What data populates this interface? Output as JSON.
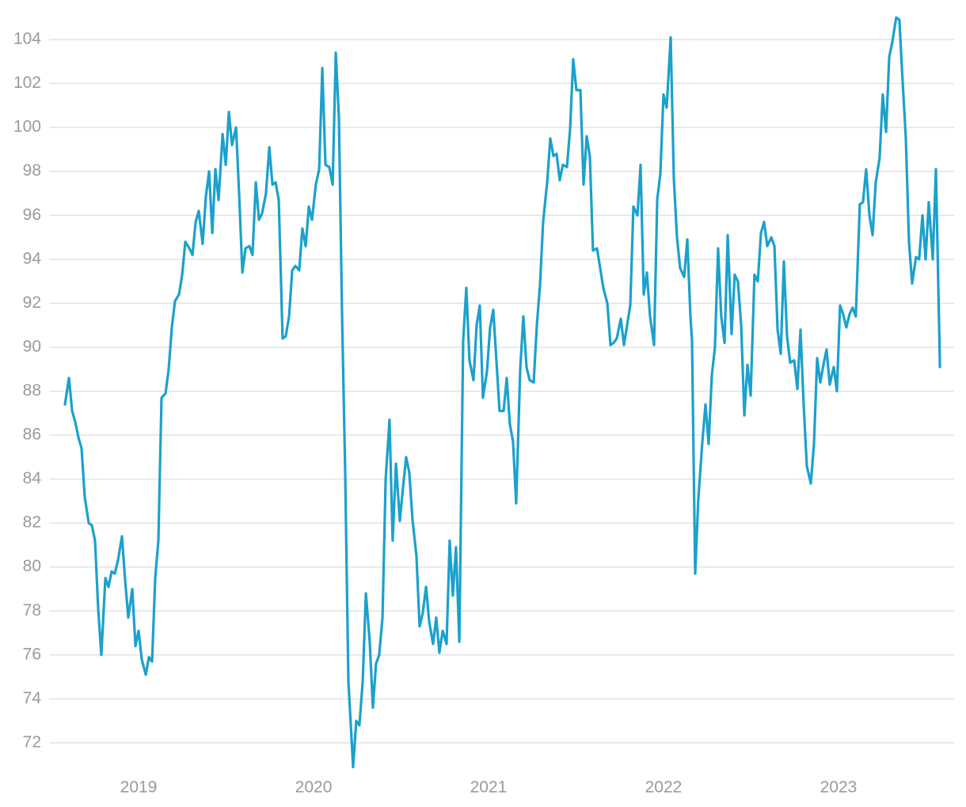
{
  "chart_data": {
    "type": "line",
    "color": "#1ba1cc",
    "grid": true,
    "xlim": [
      2018.502,
      2023.661
    ],
    "xticks": [
      2019,
      2020,
      2021,
      2022,
      2023
    ],
    "ylim": [
      70.5,
      105.5
    ],
    "yticks": [
      72,
      74,
      76,
      78,
      80,
      82,
      84,
      86,
      88,
      90,
      92,
      94,
      96,
      98,
      100,
      102,
      104
    ],
    "x": [
      2018.579,
      2018.602,
      2018.62,
      2018.638,
      2018.656,
      2018.674,
      2018.692,
      2018.715,
      2018.733,
      2018.751,
      2018.769,
      2018.787,
      2018.81,
      2018.828,
      2018.846,
      2018.864,
      2018.882,
      2018.905,
      2018.923,
      2018.941,
      2018.964,
      2018.982,
      2019.0,
      2019.018,
      2019.041,
      2019.059,
      2019.077,
      2019.095,
      2019.113,
      2019.131,
      2019.154,
      2019.172,
      2019.19,
      2019.208,
      2019.231,
      2019.249,
      2019.267,
      2019.29,
      2019.308,
      2019.326,
      2019.344,
      2019.366,
      2019.385,
      2019.403,
      2019.421,
      2019.439,
      2019.457,
      2019.48,
      2019.498,
      2019.516,
      2019.534,
      2019.557,
      2019.575,
      2019.593,
      2019.611,
      2019.633,
      2019.651,
      2019.67,
      2019.688,
      2019.706,
      2019.728,
      2019.747,
      2019.765,
      2019.783,
      2019.801,
      2019.823,
      2019.841,
      2019.86,
      2019.878,
      2019.896,
      2019.918,
      2019.936,
      2019.955,
      2019.973,
      2019.991,
      2020.013,
      2020.032,
      2020.05,
      2020.068,
      2020.09,
      2020.109,
      2020.127,
      2020.145,
      2020.163,
      2020.181,
      2020.199,
      2020.226,
      2020.244,
      2020.262,
      2020.281,
      2020.299,
      2020.321,
      2020.339,
      2020.357,
      2020.375,
      2020.394,
      2020.412,
      2020.434,
      2020.452,
      2020.471,
      2020.493,
      2020.511,
      2020.529,
      2020.547,
      2020.566,
      2020.588,
      2020.606,
      2020.624,
      2020.643,
      2020.661,
      2020.683,
      2020.701,
      2020.719,
      2020.738,
      2020.76,
      2020.778,
      2020.796,
      2020.814,
      2020.833,
      2020.855,
      2020.873,
      2020.891,
      2020.914,
      2020.932,
      2020.95,
      2020.968,
      2020.991,
      2021.009,
      2021.027,
      2021.045,
      2021.063,
      2021.086,
      2021.104,
      2021.122,
      2021.14,
      2021.158,
      2021.181,
      2021.199,
      2021.217,
      2021.235,
      2021.258,
      2021.276,
      2021.294,
      2021.312,
      2021.335,
      2021.353,
      2021.371,
      2021.389,
      2021.407,
      2021.425,
      2021.448,
      2021.466,
      2021.484,
      2021.502,
      2021.525,
      2021.543,
      2021.561,
      2021.579,
      2021.597,
      2021.62,
      2021.638,
      2021.656,
      2021.679,
      2021.697,
      2021.715,
      2021.733,
      2021.756,
      2021.774,
      2021.792,
      2021.81,
      2021.828,
      2021.851,
      2021.869,
      2021.887,
      2021.905,
      2021.923,
      2021.946,
      2021.964,
      2021.982,
      2022.0,
      2022.018,
      2022.041,
      2022.059,
      2022.077,
      2022.095,
      2022.118,
      2022.136,
      2022.154,
      2022.163,
      2022.181,
      2022.199,
      2022.222,
      2022.24,
      2022.258,
      2022.276,
      2022.294,
      2022.312,
      2022.33,
      2022.349,
      2022.367,
      2022.389,
      2022.407,
      2022.425,
      2022.444,
      2022.462,
      2022.48,
      2022.498,
      2022.52,
      2022.539,
      2022.557,
      2022.575,
      2022.593,
      2022.616,
      2022.634,
      2022.652,
      2022.67,
      2022.688,
      2022.706,
      2022.724,
      2022.747,
      2022.765,
      2022.783,
      2022.801,
      2022.819,
      2022.842,
      2022.86,
      2022.878,
      2022.896,
      2022.914,
      2022.932,
      2022.95,
      2022.973,
      2022.991,
      2023.009,
      2023.027,
      2023.045,
      2023.063,
      2023.081,
      2023.099,
      2023.122,
      2023.14,
      2023.158,
      2023.177,
      2023.195,
      2023.213,
      2023.235,
      2023.253,
      2023.272,
      2023.29,
      2023.308,
      2023.33,
      2023.348,
      2023.366,
      2023.385,
      2023.403,
      2023.421,
      2023.443,
      2023.461,
      2023.48,
      2023.498,
      2023.516,
      2023.539,
      2023.557,
      2023.58
    ],
    "values": [
      87.4,
      88.6,
      87.1,
      86.6,
      85.9,
      85.4,
      83.2,
      82.0,
      81.9,
      81.2,
      78.1,
      76.0,
      79.5,
      79.1,
      79.8,
      79.7,
      80.3,
      81.4,
      79.4,
      77.7,
      79.0,
      76.4,
      77.1,
      75.8,
      75.1,
      75.9,
      75.7,
      79.5,
      81.2,
      87.7,
      87.9,
      89.0,
      90.9,
      92.1,
      92.4,
      93.3,
      94.8,
      94.5,
      94.2,
      95.7,
      96.2,
      94.7,
      96.9,
      98.0,
      95.2,
      98.1,
      96.7,
      99.7,
      98.3,
      100.7,
      99.2,
      100.0,
      96.9,
      93.4,
      94.5,
      94.6,
      94.2,
      97.5,
      95.8,
      96.1,
      97.0,
      99.1,
      97.4,
      97.5,
      96.7,
      90.4,
      90.5,
      91.4,
      93.5,
      93.7,
      93.5,
      95.4,
      94.6,
      96.4,
      95.8,
      97.4,
      98.1,
      102.7,
      98.3,
      98.2,
      97.4,
      103.4,
      100.4,
      91.4,
      84.2,
      74.8,
      70.9,
      73.0,
      72.8,
      74.8,
      78.8,
      76.6,
      73.6,
      75.6,
      76.0,
      77.7,
      84.0,
      86.7,
      81.2,
      84.7,
      82.1,
      83.6,
      85.0,
      84.3,
      82.1,
      80.5,
      77.3,
      77.9,
      79.1,
      77.5,
      76.5,
      77.7,
      76.1,
      77.1,
      76.5,
      81.2,
      78.7,
      80.9,
      76.6,
      90.3,
      92.7,
      89.4,
      88.5,
      91.0,
      91.9,
      87.7,
      88.9,
      90.9,
      91.7,
      89.4,
      87.1,
      87.1,
      88.6,
      86.5,
      85.7,
      82.9,
      89.0,
      91.4,
      89.1,
      88.5,
      88.4,
      91.0,
      92.8,
      95.7,
      97.5,
      99.5,
      98.7,
      98.8,
      97.6,
      98.3,
      98.2,
      99.9,
      103.1,
      101.7,
      101.7,
      97.4,
      99.6,
      98.7,
      94.4,
      94.5,
      93.6,
      92.7,
      92.0,
      90.1,
      90.2,
      90.4,
      91.3,
      90.1,
      91.0,
      91.9,
      96.4,
      96.0,
      98.3,
      92.4,
      93.4,
      91.4,
      90.1,
      96.7,
      97.9,
      101.5,
      100.9,
      104.1,
      97.7,
      95.0,
      93.6,
      93.2,
      94.9,
      91.4,
      90.3,
      79.7,
      83.1,
      85.7,
      87.4,
      85.6,
      88.7,
      90.0,
      94.5,
      91.4,
      90.2,
      95.1,
      90.6,
      93.3,
      93.0,
      91.0,
      86.9,
      89.2,
      87.8,
      93.3,
      93.0,
      95.2,
      95.7,
      94.6,
      95.0,
      94.6,
      90.8,
      89.7,
      93.9,
      90.5,
      89.3,
      89.4,
      88.1,
      90.8,
      87.4,
      84.6,
      83.8,
      85.6,
      89.5,
      88.4,
      89.2,
      89.9,
      88.3,
      89.1,
      88.0,
      91.9,
      91.5,
      90.9,
      91.5,
      91.8,
      91.4,
      96.5,
      96.6,
      98.1,
      96.0,
      95.1,
      97.5,
      98.6,
      101.5,
      99.8,
      103.2,
      103.9,
      105.0,
      104.9,
      102.2,
      99.5,
      94.8,
      92.9,
      94.1,
      94.0,
      96.0,
      94.0,
      96.6,
      94.0,
      98.1,
      89.1
    ]
  }
}
